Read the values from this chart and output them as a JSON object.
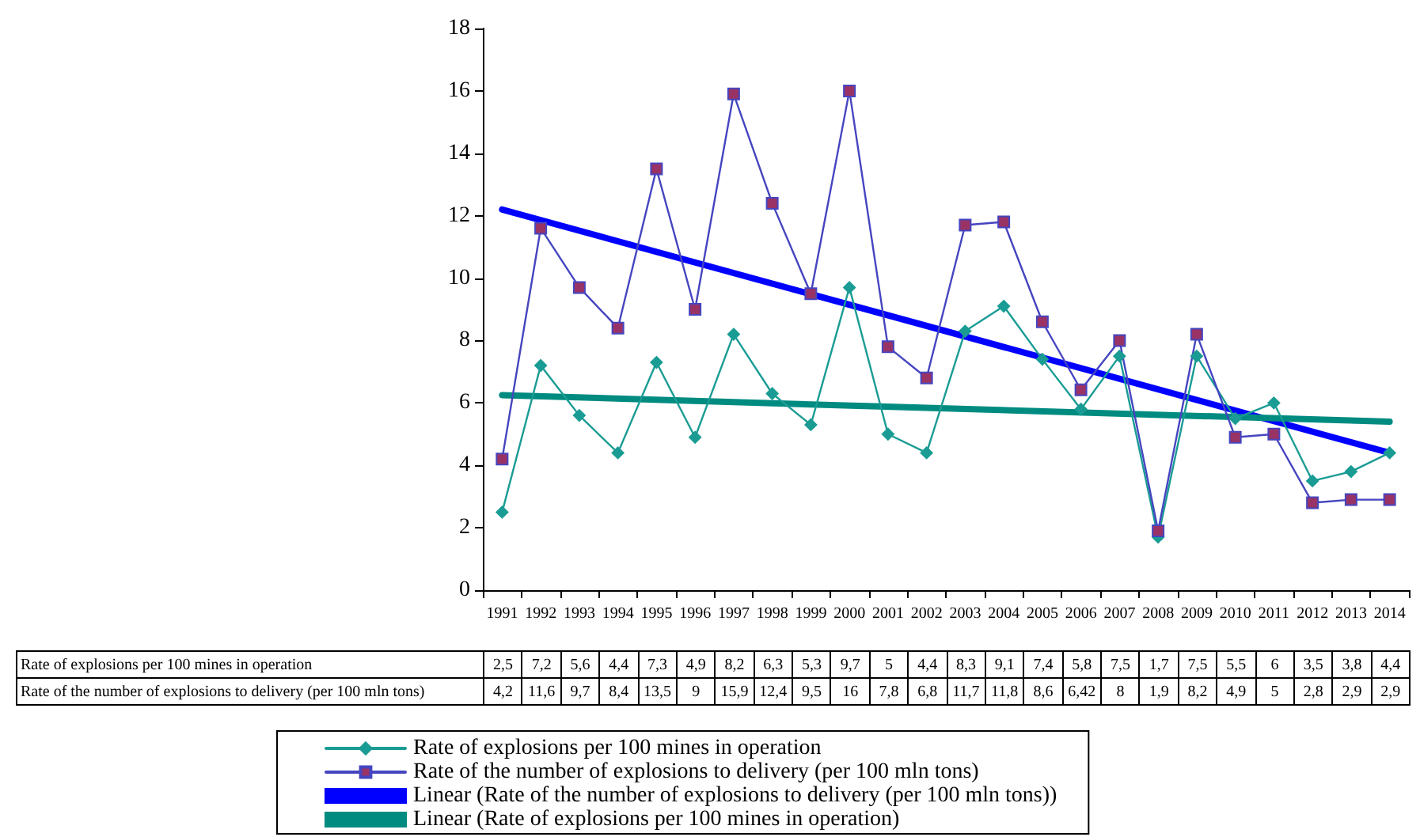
{
  "chart_data": {
    "type": "line",
    "categories": [
      "1991",
      "1992",
      "1993",
      "1994",
      "1995",
      "1996",
      "1997",
      "1998",
      "1999",
      "2000",
      "2001",
      "2002",
      "2003",
      "2004",
      "2005",
      "2006",
      "2007",
      "2008",
      "2009",
      "2010",
      "2011",
      "2012",
      "2013",
      "2014"
    ],
    "ylim": [
      0,
      18
    ],
    "yticks": [
      0,
      2,
      4,
      6,
      8,
      10,
      12,
      14,
      16,
      18
    ],
    "grid": false,
    "legend": "bottom",
    "data_labels": false,
    "series": [
      {
        "name": "Rate of explosions per 100 mines in operation",
        "color": "#1a9c94",
        "marker": "diamond",
        "values": [
          2.5,
          7.2,
          5.6,
          4.4,
          7.3,
          4.9,
          8.2,
          6.3,
          5.3,
          9.7,
          5,
          4.4,
          8.3,
          9.1,
          7.4,
          5.8,
          7.5,
          1.7,
          7.5,
          5.5,
          6,
          3.5,
          3.8,
          4.4
        ],
        "value_labels": [
          "2,5",
          "7,2",
          "5,6",
          "4,4",
          "7,3",
          "4,9",
          "8,2",
          "6,3",
          "5,3",
          "9,7",
          "5",
          "4,4",
          "8,3",
          "9,1",
          "7,4",
          "5,8",
          "7,5",
          "1,7",
          "7,5",
          "5,5",
          "6",
          "3,5",
          "3,8",
          "4,4"
        ]
      },
      {
        "name": "Rate of the number of explosions to delivery (per 100 mln tons)",
        "color": "#4545c0",
        "marker": "square",
        "values": [
          4.2,
          11.6,
          9.7,
          8.4,
          13.5,
          9,
          15.9,
          12.4,
          9.5,
          16,
          7.8,
          6.8,
          11.7,
          11.8,
          8.6,
          6.42,
          8,
          1.9,
          8.2,
          4.9,
          5,
          2.8,
          2.9,
          2.9
        ],
        "value_labels": [
          "4,2",
          "11,6",
          "9,7",
          "8,4",
          "13,5",
          "9",
          "15,9",
          "12,4",
          "9,5",
          "16",
          "7,8",
          "6,8",
          "11,7",
          "11,8",
          "8,6",
          "6,42",
          "8",
          "1,9",
          "8,2",
          "4,9",
          "5",
          "2,8",
          "2,9",
          "2,9"
        ]
      },
      {
        "name": "Linear (Rate of the number of explosions to delivery (per 100 mln tons))",
        "color": "#0000ff",
        "marker": "none",
        "values": [
          12.2,
          null,
          null,
          null,
          null,
          null,
          null,
          null,
          null,
          null,
          null,
          null,
          null,
          null,
          null,
          null,
          null,
          null,
          null,
          null,
          null,
          null,
          null,
          4.4
        ]
      },
      {
        "name": "Linear (Rate of explosions per 100 mines in operation)",
        "color": "#008b80",
        "marker": "none",
        "values": [
          6.25,
          null,
          null,
          null,
          null,
          null,
          null,
          null,
          null,
          null,
          null,
          null,
          null,
          null,
          null,
          null,
          null,
          null,
          null,
          null,
          null,
          null,
          null,
          5.4
        ]
      }
    ]
  }
}
